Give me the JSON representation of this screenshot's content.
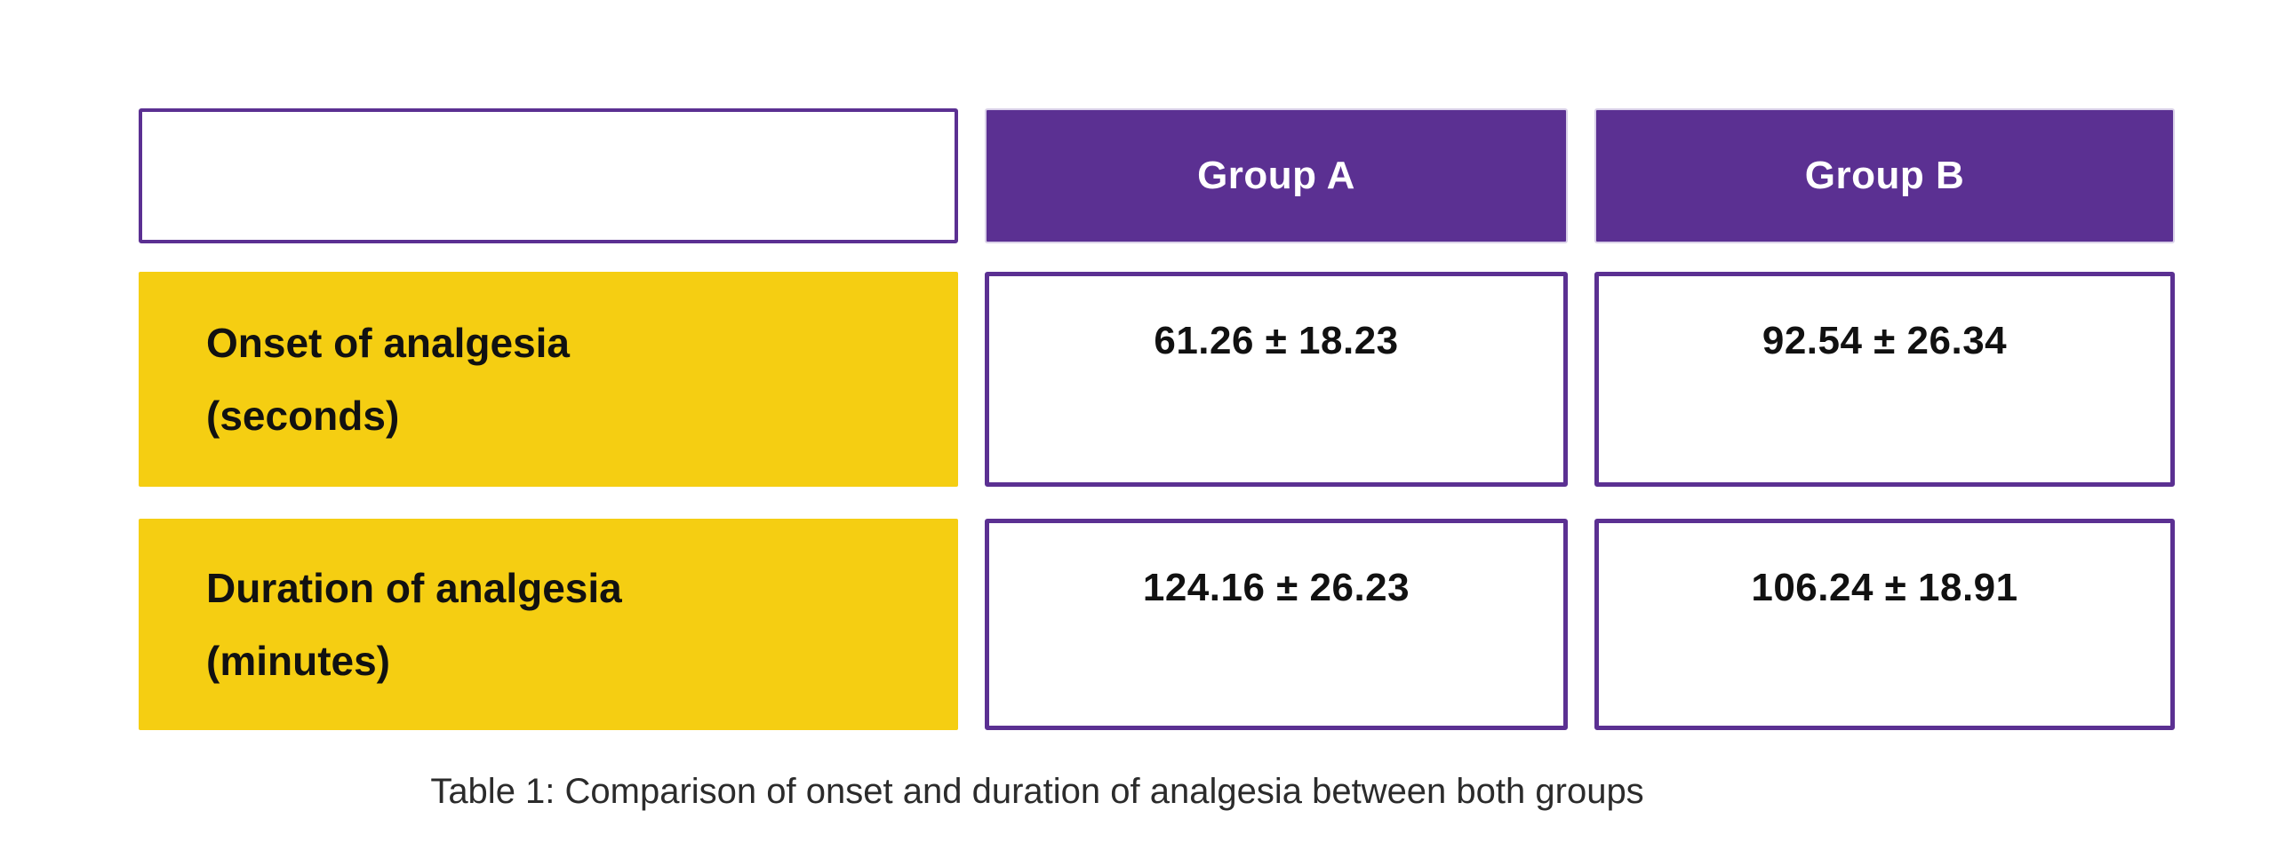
{
  "colors": {
    "header_purple": "#5b3092",
    "header_edge_light": "#d9d0e8",
    "label_yellow": "#f5ce12",
    "cell_border_purple": "#5b3092",
    "text_black": "#111111",
    "caption_gray": "#2b2b2b",
    "background": "#ffffff"
  },
  "table": {
    "header": {
      "corner": "",
      "col_a": "Group A",
      "col_b": "Group B"
    },
    "rows": [
      {
        "label": "Onset of analgesia",
        "unit": "(seconds)",
        "value_a": "61.26 ± 18.23",
        "value_b": "92.54 ± 26.34"
      },
      {
        "label": "Duration of analgesia",
        "unit": "(minutes)",
        "value_a": "124.16 ± 26.23",
        "value_b": "106.24 ± 18.91"
      }
    ],
    "caption": "Table 1: Comparison of onset and duration of analgesia between both groups"
  },
  "chart_data": {
    "type": "table",
    "columns": [
      "",
      "Group A",
      "Group B"
    ],
    "rows": [
      [
        "Onset of analgesia (seconds)",
        "61.26 ± 18.23",
        "92.54 ± 26.34"
      ],
      [
        "Duration of analgesia (minutes)",
        "124.16 ± 26.23",
        "106.24 ± 18.91"
      ]
    ],
    "title": "Table 1: Comparison of onset and duration of analgesia between both groups"
  }
}
